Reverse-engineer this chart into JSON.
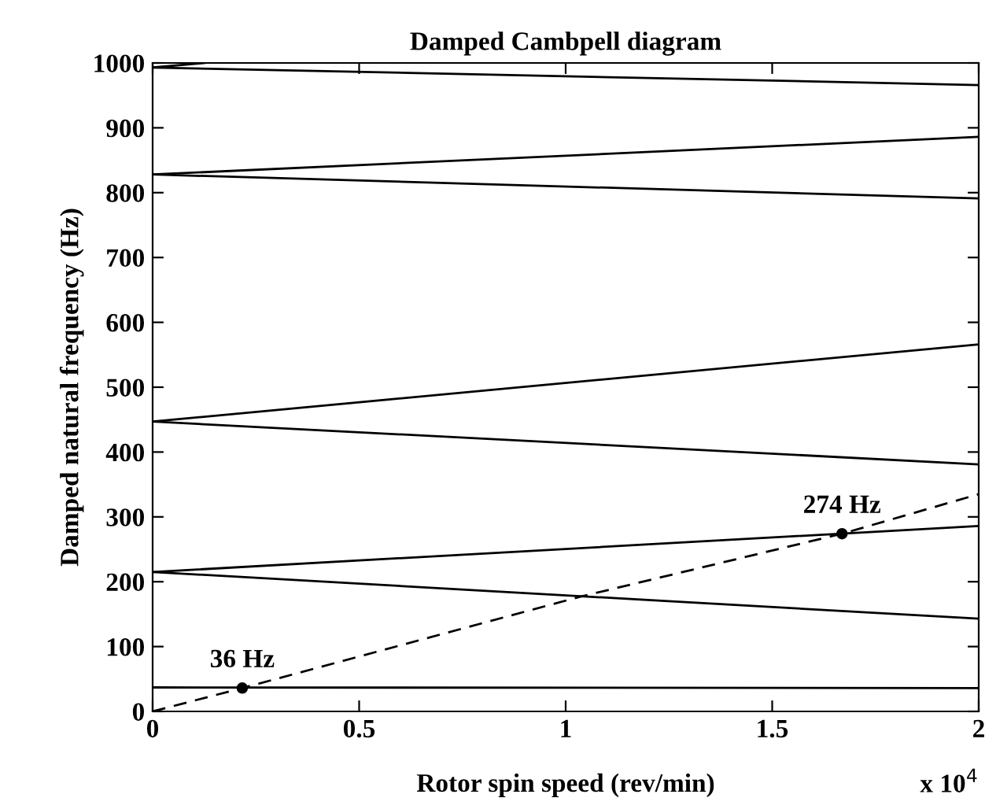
{
  "chart_data": {
    "type": "line",
    "title": "Damped Cambpell diagram",
    "xlabel": "Rotor spin speed (rev/min)",
    "ylabel": "Damped natural frequency (Hz)",
    "series": [
      {
        "color": "#000000",
        "x": [
          0,
          2
        ],
        "values": [
          37,
          36
        ]
      },
      {
        "color": "#000000",
        "x": [
          0,
          2
        ],
        "values": [
          215,
          286
        ]
      },
      {
        "color": "#000000",
        "x": [
          0,
          2
        ],
        "values": [
          215,
          143
        ]
      },
      {
        "color": "#000000",
        "x": [
          0,
          2
        ],
        "values": [
          447,
          566
        ]
      },
      {
        "color": "#000000",
        "x": [
          0,
          2
        ],
        "values": [
          447,
          381
        ]
      },
      {
        "color": "#000000",
        "x": [
          0,
          2
        ],
        "values": [
          828,
          886
        ]
      },
      {
        "color": "#000000",
        "x": [
          0,
          2
        ],
        "values": [
          828,
          791
        ]
      },
      {
        "color": "#000000",
        "x": [
          0,
          0.125
        ],
        "values": [
          993,
          1000
        ]
      },
      {
        "color": "#000000",
        "x": [
          0,
          2
        ],
        "values": [
          993,
          966
        ]
      },
      {
        "color": "#000000",
        "line_style": "dashed",
        "x": [
          0,
          0.217,
          1.036,
          1.669,
          2
        ],
        "values": [
          0,
          36,
          177,
          274,
          335
        ]
      },
      {
        "type": "scatter",
        "color": "#000000",
        "marker": "circle",
        "x": [
          0.217,
          1.669
        ],
        "values": [
          36,
          274
        ]
      }
    ],
    "annotations": [
      {
        "text": "36 Hz",
        "x": 0.217,
        "y": 36
      },
      {
        "text": "274 Hz",
        "x": 1.669,
        "y": 274
      },
      "x 10$^{4}$"
    ],
    "xlim": [
      0,
      2
    ],
    "xticks": [
      0,
      0.5,
      1,
      1.5,
      2
    ],
    "ylim": [
      0,
      1000
    ],
    "yticks": [
      0,
      100,
      200,
      300,
      400,
      500,
      600,
      700,
      800,
      900,
      1000
    ],
    "grid": false,
    "legend": false
  }
}
